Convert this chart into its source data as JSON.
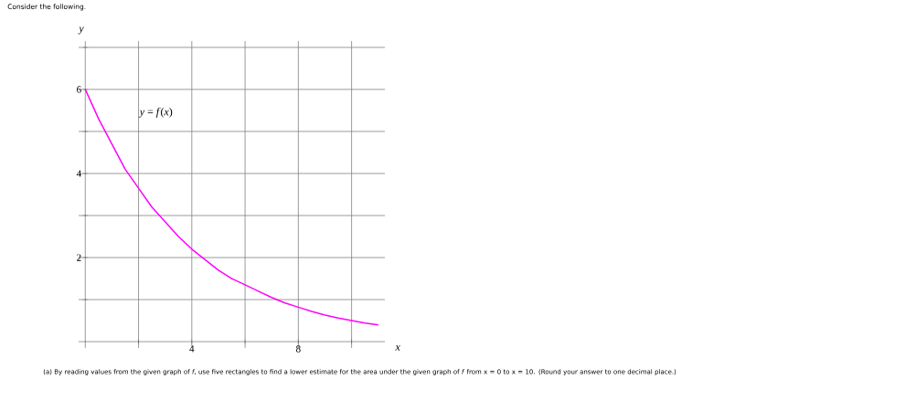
{
  "chart_data": {
    "type": "line",
    "xlabel": "x",
    "ylabel": "y",
    "annotations": [
      "Consider the following.",
      "(a) By reading values from the given graph of *f*, use five rectangles to find a lower estimate for the area under the given graph of *f* from x = 0 to x = 10. (Round your answer to one decimal place.)"
    ],
    "x": [
      0,
      0.5,
      1,
      1.5,
      2,
      2.5,
      3,
      3.5,
      4,
      4.5,
      5,
      5.5,
      6,
      6.5,
      7,
      7.5,
      8,
      8.5,
      9,
      9.5,
      10,
      10.5,
      11
    ],
    "series": [
      {
        "name": "*y* = *f*(*x*)",
        "color": "#ff00ff",
        "values": [
          6,
          5.3,
          4.7,
          4.1,
          3.65,
          3.2,
          2.85,
          2.5,
          2.2,
          1.95,
          1.7,
          1.5,
          1.35,
          1.2,
          1.05,
          0.92,
          0.82,
          0.72,
          0.63,
          0.56,
          0.5,
          0.44,
          0.4
        ]
      }
    ],
    "xlim": [
      -0.25,
      11.25
    ],
    "ylim": [
      -0.15,
      7.15
    ],
    "xticks": [
      {
        "value": 2,
        "label": null
      },
      4,
      {
        "value": 6,
        "label": null
      },
      8,
      {
        "value": 10,
        "label": null
      }
    ],
    "yticks": [
      {
        "value": 1,
        "label": null
      },
      2,
      {
        "value": 3,
        "label": null
      },
      4,
      {
        "value": 5,
        "label": null
      },
      6,
      {
        "value": 7,
        "label": null
      }
    ],
    "grid": true,
    "marker": "none",
    "line_style": "solid"
  }
}
